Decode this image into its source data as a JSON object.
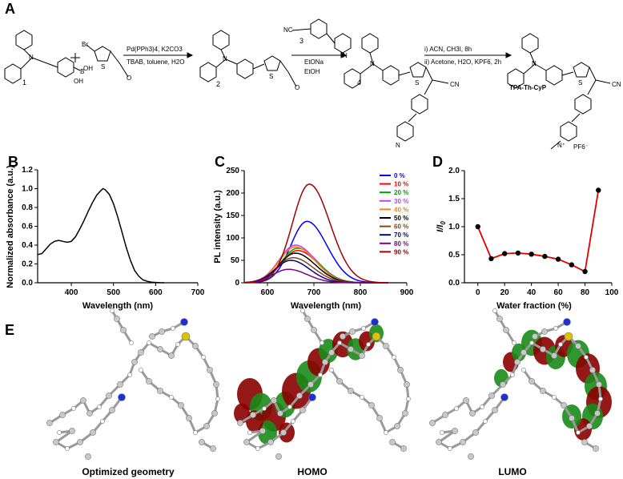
{
  "panels": {
    "A": "A",
    "B": "B",
    "C": "C",
    "D": "D",
    "E": "E"
  },
  "scheme": {
    "cmpd1": "1",
    "cmpd2": "2",
    "cmpd3": "3",
    "cmpd4": "4",
    "product": "TPA-Th-CyP",
    "step1_top": "Pd(PPh3)4, K2CO3",
    "step1_bottom": "TBAB, toluene, H2O",
    "step2_top": "EtONa",
    "step2_bottom": "EtOH",
    "step3_top": "i) ACN, CH3I,  8h",
    "step3_bottom": "ii) Acetone, H2O, KPF6, 2h",
    "atoms": {
      "N": "N",
      "B": "B",
      "OH": "OH",
      "Br": "Br",
      "O": "O",
      "S": "S",
      "CN": "CN",
      "NC": "NC",
      "PF6": "PF6⁻",
      "Nplus": "N⁺"
    }
  },
  "captions": {
    "opt": "Optimized geometry",
    "homo": "HOMO",
    "lumo": "LUMO"
  },
  "chart_data": [
    {
      "type": "line",
      "panel": "B",
      "xlabel": "Wavelength (nm)",
      "ylabel": "Normalized absorbance (a.u.)",
      "xlim": [
        320,
        700
      ],
      "ylim": [
        0.0,
        1.2
      ],
      "xticks": [
        400,
        500,
        600,
        700
      ],
      "yticks": [
        0.0,
        0.2,
        0.4,
        0.6,
        0.8,
        1.0,
        1.2
      ],
      "color": "#000000",
      "x": [
        320,
        330,
        340,
        350,
        360,
        370,
        380,
        390,
        400,
        410,
        420,
        430,
        440,
        450,
        460,
        470,
        475,
        480,
        490,
        500,
        510,
        520,
        530,
        540,
        550,
        560,
        570,
        580,
        590,
        600,
        610,
        620
      ],
      "y": [
        0.3,
        0.31,
        0.36,
        0.41,
        0.44,
        0.45,
        0.44,
        0.43,
        0.44,
        0.49,
        0.57,
        0.66,
        0.76,
        0.85,
        0.93,
        0.98,
        1.0,
        0.99,
        0.94,
        0.84,
        0.7,
        0.54,
        0.38,
        0.24,
        0.13,
        0.07,
        0.03,
        0.015,
        0.007,
        0.003,
        0.001,
        0.0
      ]
    },
    {
      "type": "line",
      "panel": "C",
      "xlabel": "Wavelength (nm)",
      "ylabel": "PL intensity (a.u.)",
      "xlim": [
        550,
        900
      ],
      "ylim": [
        0,
        250
      ],
      "xticks": [
        600,
        700,
        800,
        900
      ],
      "yticks": [
        0,
        50,
        100,
        150,
        200,
        250
      ],
      "legend_position": "top-right",
      "series": [
        {
          "name": "0  %",
          "color": "#0000ff",
          "peak": 685,
          "amp": 137,
          "w": 58
        },
        {
          "name": "10 %",
          "color": "#ff0000",
          "peak": 665,
          "amp": 72,
          "w": 58
        },
        {
          "name": "20 %",
          "color": "#00a000",
          "peak": 665,
          "amp": 77,
          "w": 58
        },
        {
          "name": "30 %",
          "color": "#c040ff",
          "peak": 660,
          "amp": 84,
          "w": 58
        },
        {
          "name": "40 %",
          "color": "#ff8000",
          "peak": 660,
          "amp": 80,
          "w": 58
        },
        {
          "name": "50 %",
          "color": "#000000",
          "peak": 660,
          "amp": 66,
          "w": 58
        },
        {
          "name": "60 %",
          "color": "#8b4513",
          "peak": 655,
          "amp": 56,
          "w": 58
        },
        {
          "name": "70 %",
          "color": "#000080",
          "peak": 650,
          "amp": 50,
          "w": 55
        },
        {
          "name": "80 %",
          "color": "#800080",
          "peak": 645,
          "amp": 30,
          "w": 55
        },
        {
          "name": "90 %",
          "color": "#a00000",
          "peak": 690,
          "amp": 220,
          "w": 60
        }
      ]
    },
    {
      "type": "line",
      "panel": "D",
      "xlabel": "Water fraction (%)",
      "ylabel": "I/I0",
      "xlim": [
        -10,
        100
      ],
      "ylim": [
        0.0,
        2.0
      ],
      "xticks": [
        0,
        20,
        40,
        60,
        80,
        100
      ],
      "yticks": [
        0.0,
        0.5,
        1.0,
        1.5,
        2.0
      ],
      "color": "#e00000",
      "x": [
        0,
        10,
        20,
        30,
        40,
        50,
        60,
        70,
        80,
        90
      ],
      "y": [
        1.0,
        0.43,
        0.52,
        0.53,
        0.51,
        0.47,
        0.42,
        0.32,
        0.2,
        1.65
      ]
    }
  ]
}
